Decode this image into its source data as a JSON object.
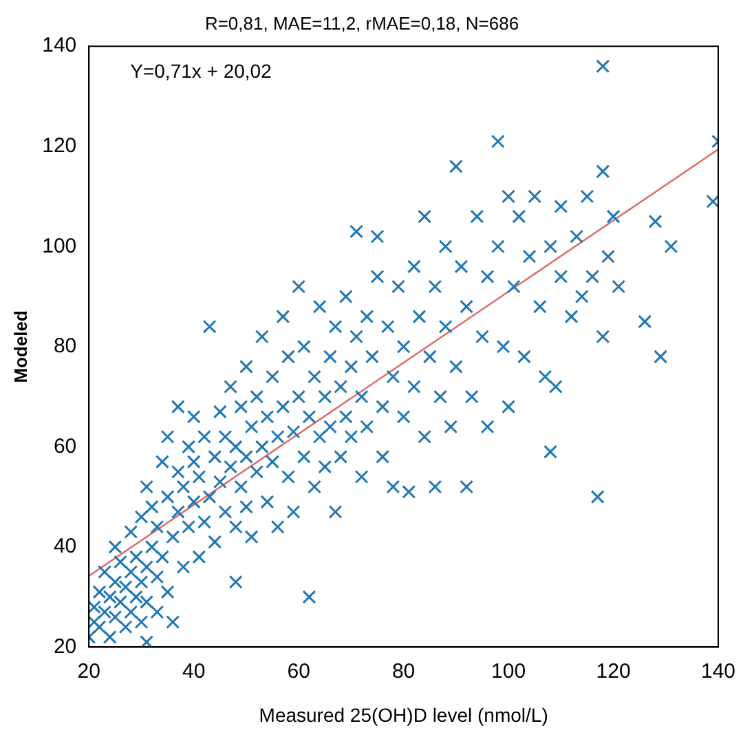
{
  "chart_data": {
    "type": "scatter",
    "title": "R=0,81, MAE=11,2, rMAE=0,18, N=686",
    "xlabel": "Measured 25(OH)D level (nmol/L)",
    "ylabel": "Modeled",
    "annotations": [
      "Y=0,71x + 20,02"
    ],
    "xlim": [
      20,
      140
    ],
    "ylim": [
      20,
      140
    ],
    "xticks": [
      20,
      40,
      60,
      80,
      100,
      120,
      140
    ],
    "yticks": [
      20,
      40,
      60,
      80,
      100,
      120,
      140
    ],
    "grid": false,
    "legend": false,
    "series": [
      {
        "color": "#1f77b4",
        "marker": "cross",
        "x": [
          20,
          21,
          21,
          22,
          22,
          23,
          23,
          24,
          24,
          25,
          25,
          25,
          26,
          26,
          27,
          27,
          28,
          28,
          28,
          29,
          29,
          30,
          30,
          30,
          31,
          31,
          31,
          31,
          32,
          32,
          33,
          33,
          33,
          34,
          34,
          35,
          35,
          35,
          36,
          36,
          37,
          37,
          37,
          38,
          38,
          39,
          39,
          40,
          40,
          40,
          41,
          41,
          42,
          42,
          43,
          43,
          44,
          44,
          45,
          45,
          46,
          46,
          47,
          47,
          48,
          48,
          48,
          49,
          49,
          50,
          50,
          50,
          51,
          51,
          52,
          52,
          53,
          53,
          54,
          54,
          55,
          55,
          56,
          56,
          57,
          57,
          58,
          58,
          59,
          59,
          60,
          60,
          61,
          61,
          62,
          62,
          63,
          63,
          64,
          64,
          65,
          65,
          66,
          66,
          67,
          67,
          68,
          68,
          69,
          69,
          70,
          70,
          71,
          71,
          72,
          72,
          73,
          73,
          74,
          75,
          75,
          76,
          76,
          77,
          78,
          78,
          79,
          80,
          80,
          81,
          82,
          82,
          83,
          84,
          84,
          85,
          86,
          86,
          87,
          88,
          88,
          89,
          90,
          90,
          91,
          92,
          92,
          93,
          94,
          95,
          96,
          96,
          98,
          98,
          99,
          100,
          100,
          101,
          102,
          103,
          104,
          105,
          106,
          107,
          108,
          108,
          109,
          110,
          110,
          112,
          113,
          114,
          115,
          116,
          117,
          118,
          118,
          118,
          119,
          120,
          121,
          126,
          128,
          129,
          131,
          139,
          140
        ],
        "values": [
          22,
          25,
          28,
          24,
          31,
          27,
          35,
          22,
          30,
          26,
          33,
          40,
          29,
          37,
          24,
          32,
          27,
          35,
          43,
          30,
          38,
          25,
          33,
          46,
          21,
          29,
          36,
          52,
          40,
          48,
          27,
          34,
          44,
          57,
          38,
          31,
          50,
          62,
          42,
          25,
          47,
          55,
          68,
          36,
          52,
          44,
          60,
          49,
          57,
          66,
          38,
          54,
          45,
          62,
          50,
          84,
          58,
          41,
          67,
          53,
          47,
          62,
          56,
          72,
          33,
          44,
          60,
          52,
          68,
          48,
          58,
          76,
          64,
          42,
          55,
          70,
          60,
          82,
          49,
          66,
          57,
          74,
          44,
          62,
          68,
          86,
          54,
          78,
          63,
          47,
          70,
          92,
          58,
          80,
          30,
          66,
          52,
          74,
          62,
          88,
          70,
          56,
          78,
          64,
          47,
          84,
          72,
          58,
          90,
          66,
          76,
          62,
          103,
          82,
          70,
          54,
          86,
          64,
          78,
          102,
          94,
          68,
          58,
          84,
          74,
          52,
          92,
          80,
          66,
          51,
          96,
          72,
          86,
          62,
          106,
          78,
          52,
          92,
          70,
          100,
          84,
          64,
          116,
          76,
          96,
          52,
          88,
          70,
          106,
          82,
          64,
          94,
          121,
          100,
          80,
          110,
          68,
          92,
          106,
          78,
          98,
          110,
          88,
          74,
          59,
          100,
          72,
          94,
          108,
          86,
          102,
          90,
          110,
          94,
          50,
          136,
          115,
          82,
          98,
          106,
          92,
          85,
          105,
          78,
          100,
          109,
          121
        ]
      },
      {
        "type": "line",
        "color": "#e06666",
        "x": [
          20,
          140
        ],
        "values": [
          34.2,
          119.4
        ]
      }
    ]
  }
}
